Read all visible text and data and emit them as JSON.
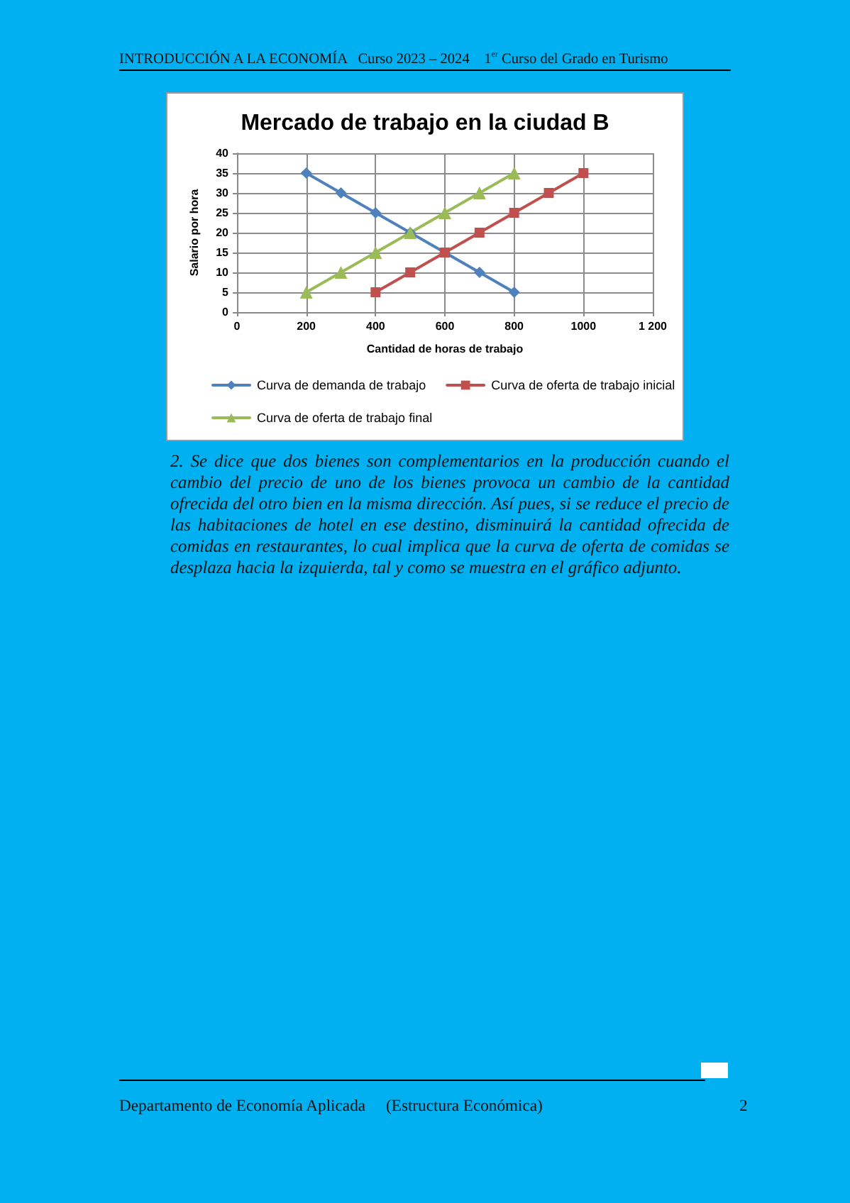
{
  "chart_data": {
    "type": "line",
    "title": "Mercado de trabajo en la ciudad B",
    "xlabel": "Cantidad de horas de trabajo",
    "ylabel": "Salario por hora",
    "series": [
      {
        "name": "Curva de demanda de trabajo",
        "color": "#4f81bd",
        "marker": "diamond",
        "x": [
          200,
          300,
          400,
          500,
          600,
          700,
          800
        ],
        "values": [
          35,
          30,
          25,
          20,
          15,
          10,
          5
        ]
      },
      {
        "name": "Curva de oferta de trabajo inicial",
        "color": "#c0504d",
        "marker": "square",
        "x": [
          400,
          500,
          600,
          700,
          800,
          900,
          1000
        ],
        "values": [
          5,
          10,
          15,
          20,
          25,
          30,
          35
        ]
      },
      {
        "name": "Curva de oferta de trabajo final",
        "color": "#9bbb59",
        "marker": "triangle",
        "x": [
          200,
          300,
          400,
          500,
          600,
          700,
          800
        ],
        "values": [
          5,
          10,
          15,
          20,
          25,
          30,
          35
        ]
      }
    ],
    "xlim": [
      0,
      1200
    ],
    "xticks": [
      0,
      200,
      400,
      600,
      800,
      1000,
      {
        "value": 1200,
        "label": "1 200"
      }
    ],
    "ylim": [
      0,
      40
    ],
    "yticks": [
      0,
      5,
      10,
      15,
      20,
      25,
      30,
      35,
      40
    ],
    "grid": true,
    "legend": "bottom",
    "annotations": [
      "INTRODUCCIÓN A LA ECONOMÍA   Curso 2023 – 2024    1$^{er}$ Curso del Grado en Turismo",
      "2. Se dice que dos bienes son complementarios en la producción cuando el cambio del precio de uno de los bienes provoca un cambio de la cantidad ofrecida del otro bien en la misma dirección. Así pues, si se reduce el precio de las habitaciones de hotel en ese destino, disminuirá la cantidad ofrecida de comidas en restaurantes, lo cual implica que la curva de oferta de comidas se desplaza hacia la izquierda, tal y como se muestra en el gráfico adjunto.",
      "Departamento de Economía Aplicada     (Estructura Económica)",
      "2"
    ]
  }
}
